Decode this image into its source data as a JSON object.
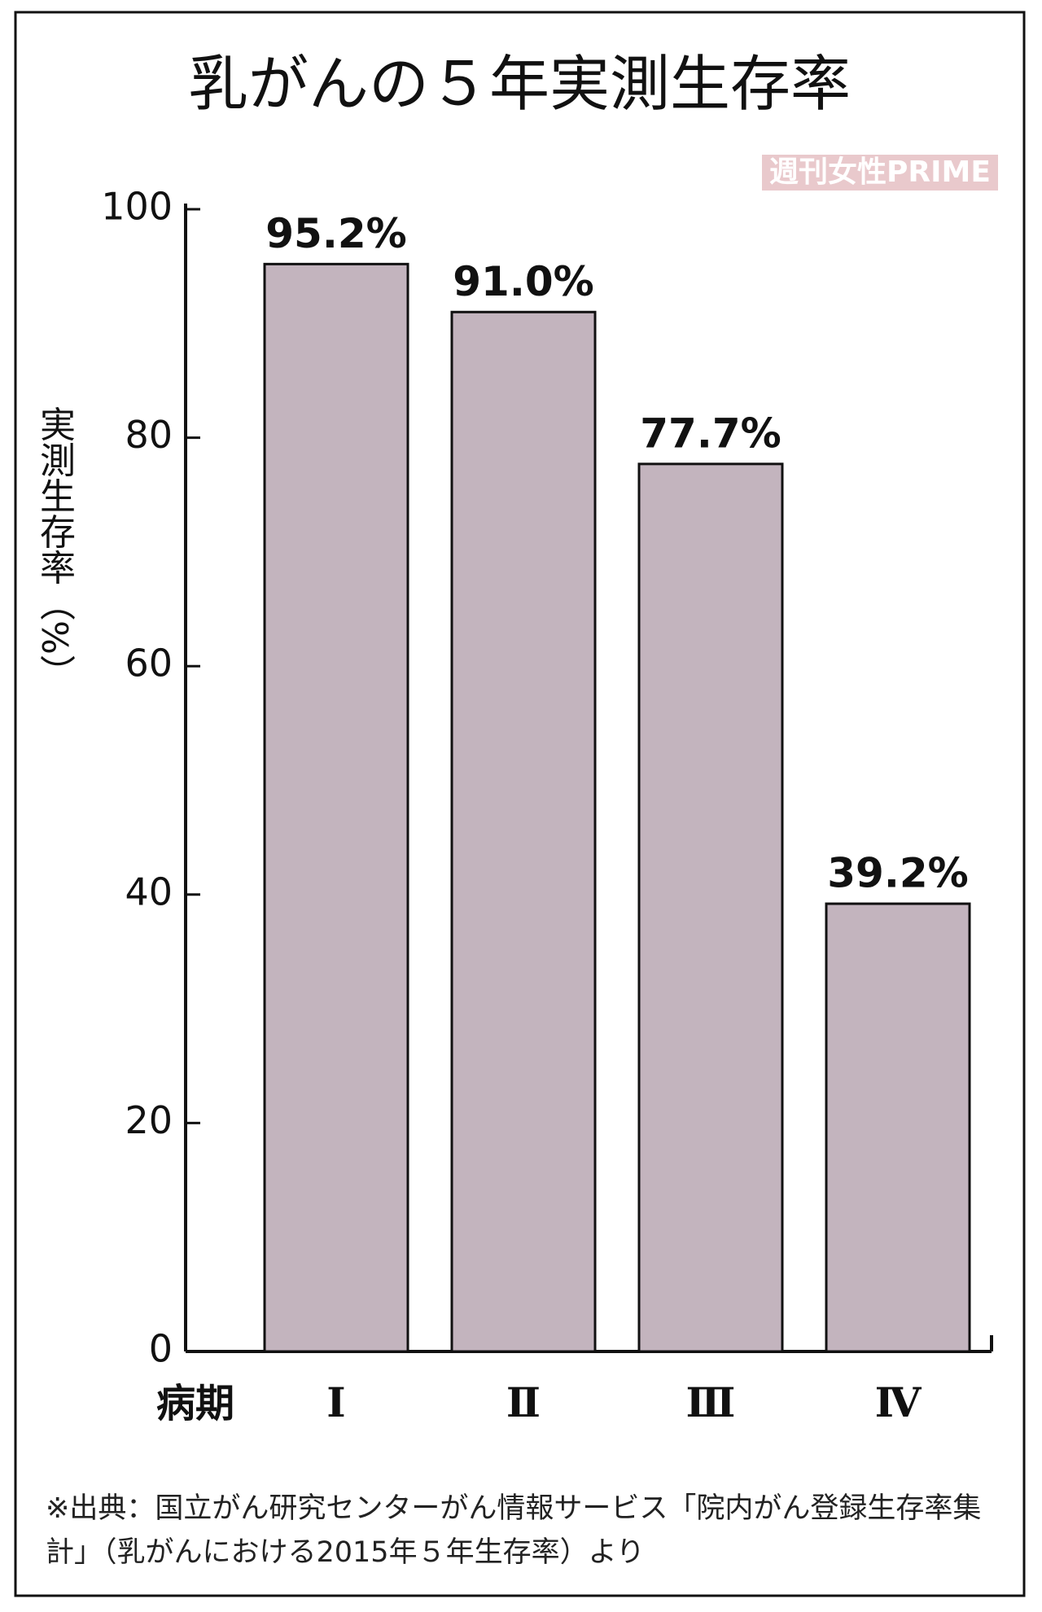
{
  "chart_data": {
    "type": "bar",
    "title": "乳がんの５年実測生存率",
    "watermark": "週刊女性PRIME",
    "y_label": "実測生存率（%）",
    "x_label": "病期",
    "categories": [
      "Ⅰ",
      "Ⅱ",
      "Ⅲ",
      "Ⅳ"
    ],
    "values": [
      95.2,
      91.0,
      77.7,
      39.2
    ],
    "value_labels": [
      "95.2%",
      "91.0%",
      "77.7%",
      "39.2%"
    ],
    "color": "#c3b4be",
    "ylim": [
      0,
      100
    ],
    "yticks": [
      0,
      20,
      40,
      60,
      80,
      100
    ],
    "grid": false,
    "note": "※出典：国立がん研究センターがん情報サービス「院内がん登録生存率集計」（乳がんにおける2015年５年生存率）より"
  }
}
